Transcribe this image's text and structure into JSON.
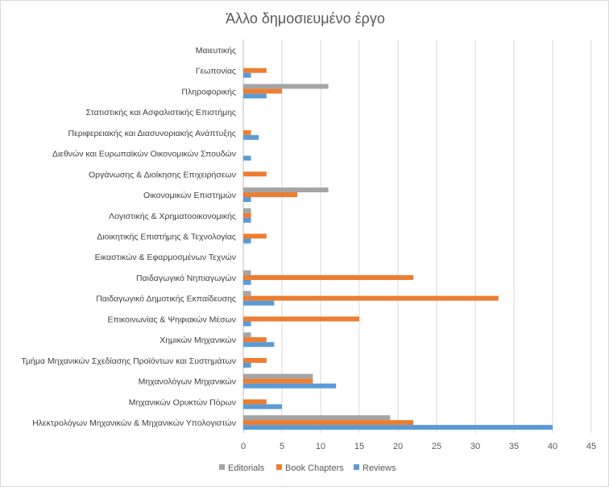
{
  "chart_data": {
    "type": "bar",
    "orientation": "horizontal",
    "title": "Άλλο δημοσιευμένο έργο",
    "categories": [
      "Μαιευτικής",
      "Γεωπονίας",
      "Πληροφορικής",
      "Στατιστικής και Ασφαλιστικής Επιστήμης",
      "Περιφερειακής  και Διασυνοριακής Ανάπτυξης",
      "Διεθνών  και Ευρωπαϊκών Οικονομικών Σπουδών",
      "Οργάνωσης & Διοίκησης Επιχειρήσεων",
      "Οικονομικών Επιστημών",
      "Λογιστικής & Χρηματοοικονομικής",
      "Διοικητικής Επιστήμης & Τεχνολογίας",
      "Εικαστικών  & Εφαρμοσμένων Τεχνών",
      "Παιδαγωγικό  Νηπιαγωγών",
      "Παιδαγωγικό  Δημοτικής Εκπαίδευσης",
      "Επικοινωνίας & Ψηφιακών Μέσων",
      "Χημικών Μηχανικών",
      "Τμήμα Μηχανικών  Σχεδίασης Προϊόντων και Συστημάτων",
      "Μηχανολόγων Μηχανικών",
      "Μηχανικών  Ορυκτών Πόρων",
      "Ηλεκτρολόγων Μηχανικών  & Μηχανικών  Υπολογιστών"
    ],
    "series": [
      {
        "name": "Editorials",
        "color": "#a5a5a5",
        "values": [
          0,
          0,
          11,
          0,
          0,
          0,
          0,
          11,
          1,
          0,
          0,
          1,
          1,
          0,
          1,
          0,
          9,
          0,
          19
        ]
      },
      {
        "name": "Book Chapters",
        "color": "#ed7d31",
        "values": [
          0,
          3,
          5,
          0,
          1,
          0,
          3,
          7,
          1,
          3,
          0,
          22,
          33,
          15,
          3,
          3,
          9,
          3,
          22
        ]
      },
      {
        "name": "Reviews",
        "color": "#5b9bd5",
        "values": [
          0,
          1,
          3,
          0,
          2,
          1,
          0,
          1,
          1,
          1,
          0,
          1,
          4,
          1,
          4,
          1,
          12,
          5,
          40
        ]
      }
    ],
    "xlim": [
      0,
      45
    ],
    "xticks": [
      "0",
      "5",
      "10",
      "15",
      "20",
      "25",
      "30",
      "35",
      "40",
      "45"
    ],
    "grid": true,
    "legend_position": "bottom"
  }
}
